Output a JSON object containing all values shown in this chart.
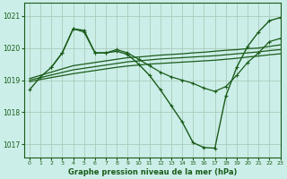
{
  "title": "Graphe pression niveau de la mer (hPa)",
  "background_color": "#cceee8",
  "grid_color": "#aaccbb",
  "line_color": "#1a5c1a",
  "xlim": [
    -0.5,
    23
  ],
  "ylim": [
    1016.6,
    1021.4
  ],
  "yticks": [
    1017,
    1018,
    1019,
    1020,
    1021
  ],
  "xticks": [
    0,
    1,
    2,
    3,
    4,
    5,
    6,
    7,
    8,
    9,
    10,
    11,
    12,
    13,
    14,
    15,
    16,
    17,
    18,
    19,
    20,
    21,
    22,
    23
  ],
  "series": [
    {
      "x": [
        0,
        1,
        2,
        3,
        4,
        5,
        6,
        7,
        8,
        9,
        10,
        11,
        12,
        13,
        14,
        15,
        16,
        17,
        18,
        19,
        20,
        21,
        22,
        23
      ],
      "y": [
        1019.05,
        1019.15,
        1019.25,
        1019.35,
        1019.45,
        1019.5,
        1019.55,
        1019.6,
        1019.65,
        1019.7,
        1019.72,
        1019.75,
        1019.78,
        1019.8,
        1019.82,
        1019.85,
        1019.87,
        1019.9,
        1019.93,
        1019.95,
        1019.98,
        1020.0,
        1020.05,
        1020.1
      ],
      "marker": false,
      "lw": 0.9
    },
    {
      "x": [
        0,
        1,
        2,
        3,
        4,
        5,
        6,
        7,
        8,
        9,
        10,
        11,
        12,
        13,
        14,
        15,
        16,
        17,
        18,
        19,
        20,
        21,
        22,
        23
      ],
      "y": [
        1019.0,
        1019.08,
        1019.16,
        1019.24,
        1019.32,
        1019.37,
        1019.42,
        1019.47,
        1019.52,
        1019.57,
        1019.6,
        1019.63,
        1019.66,
        1019.68,
        1019.7,
        1019.72,
        1019.74,
        1019.76,
        1019.79,
        1019.82,
        1019.85,
        1019.88,
        1019.92,
        1019.95
      ],
      "marker": false,
      "lw": 0.9
    },
    {
      "x": [
        0,
        1,
        2,
        3,
        4,
        5,
        6,
        7,
        8,
        9,
        10,
        11,
        12,
        13,
        14,
        15,
        16,
        17,
        18,
        19,
        20,
        21,
        22,
        23
      ],
      "y": [
        1018.95,
        1019.02,
        1019.08,
        1019.14,
        1019.2,
        1019.25,
        1019.3,
        1019.35,
        1019.4,
        1019.44,
        1019.47,
        1019.5,
        1019.52,
        1019.54,
        1019.56,
        1019.58,
        1019.6,
        1019.62,
        1019.65,
        1019.68,
        1019.72,
        1019.75,
        1019.79,
        1019.82
      ],
      "marker": false,
      "lw": 0.9
    },
    {
      "x": [
        0,
        1,
        2,
        3,
        4,
        5,
        6,
        7,
        8,
        9,
        10,
        11,
        12,
        13,
        14,
        15,
        16,
        17,
        18,
        19,
        20,
        21,
        22,
        23
      ],
      "y": [
        1018.7,
        1019.1,
        1019.4,
        1019.85,
        1020.6,
        1020.55,
        1019.85,
        1019.85,
        1019.9,
        1019.8,
        1019.5,
        1019.15,
        1018.7,
        1018.2,
        1017.7,
        1017.05,
        1016.9,
        1016.88,
        1018.5,
        1019.4,
        1020.05,
        1020.5,
        1020.85,
        1020.95
      ],
      "marker": true,
      "lw": 1.0
    },
    {
      "x": [
        2,
        3,
        4,
        5,
        6,
        7,
        8,
        9,
        10,
        11,
        12,
        13,
        14,
        15,
        16,
        17,
        18,
        19,
        20,
        21,
        22,
        23
      ],
      "y": [
        1019.4,
        1019.85,
        1020.6,
        1020.5,
        1019.85,
        1019.85,
        1019.95,
        1019.85,
        1019.65,
        1019.45,
        1019.25,
        1019.1,
        1019.0,
        1018.9,
        1018.75,
        1018.65,
        1018.8,
        1019.15,
        1019.55,
        1019.85,
        1020.2,
        1020.3
      ],
      "marker": true,
      "lw": 0.9
    }
  ]
}
